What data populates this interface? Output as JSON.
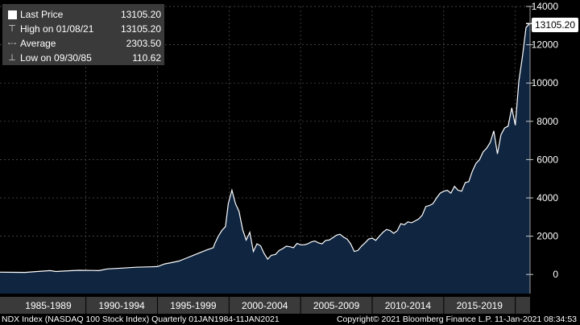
{
  "legend": {
    "items": [
      {
        "label": "Last Price",
        "value": "13105.20",
        "icon": "filled-square-icon"
      },
      {
        "label": "High on 01/08/21",
        "value": "13105.20",
        "icon": "high-marker-icon"
      },
      {
        "label": "Average",
        "value": "2303.50",
        "icon": "average-line-icon"
      },
      {
        "label": "Low on 09/30/85",
        "value": "110.62",
        "icon": "low-marker-icon"
      }
    ]
  },
  "last_price_callout": "13105.20",
  "footer": {
    "left": "NDX Index (NASDAQ 100 Stock Index)  Quarterly 01JAN1984-11JAN2021",
    "right": "Copyright© 2021 Bloomberg Finance L.P.   11-Jan-2021 08:34:53"
  },
  "colors": {
    "background": "#000000",
    "area_fill": "#0f2540",
    "line": "#ffffff",
    "axis_bar": "#3a3a3a"
  },
  "chart_data": {
    "type": "area",
    "x_unit": "year",
    "ylim": [
      -1000,
      14000
    ],
    "yticks": [
      0,
      2000,
      4000,
      6000,
      8000,
      10000,
      12000,
      14000
    ],
    "x_tick_labels": [
      "1985-1989",
      "1990-1994",
      "1995-1999",
      "2000-2004",
      "2005-2009",
      "2010-2014",
      "2015-2019"
    ],
    "grid": true,
    "legend_position": "top-left",
    "series": [
      {
        "name": "Last Price",
        "points": [
          [
            1984.0,
            120
          ],
          [
            1985.0,
            115
          ],
          [
            1985.75,
            111
          ],
          [
            1986.5,
            150
          ],
          [
            1987.5,
            200
          ],
          [
            1987.9,
            155
          ],
          [
            1988.5,
            180
          ],
          [
            1989.5,
            220
          ],
          [
            1990.5,
            210
          ],
          [
            1990.9,
            200
          ],
          [
            1991.5,
            290
          ],
          [
            1992.5,
            330
          ],
          [
            1993.5,
            380
          ],
          [
            1994.5,
            400
          ],
          [
            1995.0,
            410
          ],
          [
            1995.5,
            550
          ],
          [
            1996.0,
            620
          ],
          [
            1996.5,
            700
          ],
          [
            1997.0,
            850
          ],
          [
            1997.5,
            1000
          ],
          [
            1998.0,
            1150
          ],
          [
            1998.5,
            1300
          ],
          [
            1998.9,
            1400
          ],
          [
            1999.0,
            1600
          ],
          [
            1999.25,
            2000
          ],
          [
            1999.5,
            2300
          ],
          [
            1999.75,
            2500
          ],
          [
            1999.95,
            3700
          ],
          [
            2000.2,
            4400
          ],
          [
            2000.45,
            3700
          ],
          [
            2000.7,
            3300
          ],
          [
            2000.95,
            2350
          ],
          [
            2001.2,
            1800
          ],
          [
            2001.45,
            2200
          ],
          [
            2001.7,
            1200
          ],
          [
            2001.95,
            1600
          ],
          [
            2002.2,
            1500
          ],
          [
            2002.45,
            1100
          ],
          [
            2002.7,
            800
          ],
          [
            2002.95,
            1000
          ],
          [
            2003.25,
            1050
          ],
          [
            2003.5,
            1250
          ],
          [
            2003.75,
            1350
          ],
          [
            2004.0,
            1480
          ],
          [
            2004.25,
            1450
          ],
          [
            2004.5,
            1400
          ],
          [
            2004.75,
            1620
          ],
          [
            2005.0,
            1550
          ],
          [
            2005.25,
            1550
          ],
          [
            2005.5,
            1600
          ],
          [
            2005.75,
            1700
          ],
          [
            2006.0,
            1750
          ],
          [
            2006.25,
            1650
          ],
          [
            2006.5,
            1600
          ],
          [
            2006.75,
            1780
          ],
          [
            2007.0,
            1800
          ],
          [
            2007.25,
            1920
          ],
          [
            2007.5,
            2050
          ],
          [
            2007.75,
            2100
          ],
          [
            2008.0,
            1950
          ],
          [
            2008.25,
            1850
          ],
          [
            2008.5,
            1600
          ],
          [
            2008.75,
            1200
          ],
          [
            2009.0,
            1250
          ],
          [
            2009.25,
            1480
          ],
          [
            2009.5,
            1650
          ],
          [
            2009.75,
            1850
          ],
          [
            2010.0,
            1900
          ],
          [
            2010.25,
            1780
          ],
          [
            2010.5,
            2000
          ],
          [
            2010.75,
            2200
          ],
          [
            2011.0,
            2350
          ],
          [
            2011.25,
            2300
          ],
          [
            2011.5,
            2150
          ],
          [
            2011.75,
            2280
          ],
          [
            2012.0,
            2650
          ],
          [
            2012.25,
            2600
          ],
          [
            2012.5,
            2750
          ],
          [
            2012.75,
            2700
          ],
          [
            2013.0,
            2800
          ],
          [
            2013.25,
            2900
          ],
          [
            2013.5,
            3100
          ],
          [
            2013.75,
            3550
          ],
          [
            2014.0,
            3600
          ],
          [
            2014.25,
            3700
          ],
          [
            2014.5,
            4000
          ],
          [
            2014.75,
            4250
          ],
          [
            2015.0,
            4350
          ],
          [
            2015.25,
            4400
          ],
          [
            2015.5,
            4250
          ],
          [
            2015.75,
            4600
          ],
          [
            2016.0,
            4400
          ],
          [
            2016.25,
            4350
          ],
          [
            2016.5,
            4800
          ],
          [
            2016.75,
            4850
          ],
          [
            2017.0,
            5400
          ],
          [
            2017.25,
            5800
          ],
          [
            2017.5,
            6000
          ],
          [
            2017.75,
            6400
          ],
          [
            2018.0,
            6600
          ],
          [
            2018.25,
            6900
          ],
          [
            2018.5,
            7500
          ],
          [
            2018.75,
            6300
          ],
          [
            2019.0,
            7300
          ],
          [
            2019.25,
            7650
          ],
          [
            2019.5,
            7750
          ],
          [
            2019.75,
            8700
          ],
          [
            2020.0,
            7800
          ],
          [
            2020.25,
            10100
          ],
          [
            2020.5,
            11400
          ],
          [
            2020.75,
            12900
          ],
          [
            2021.0,
            13105.2
          ],
          [
            2021.03,
            13105.2
          ]
        ]
      }
    ]
  }
}
